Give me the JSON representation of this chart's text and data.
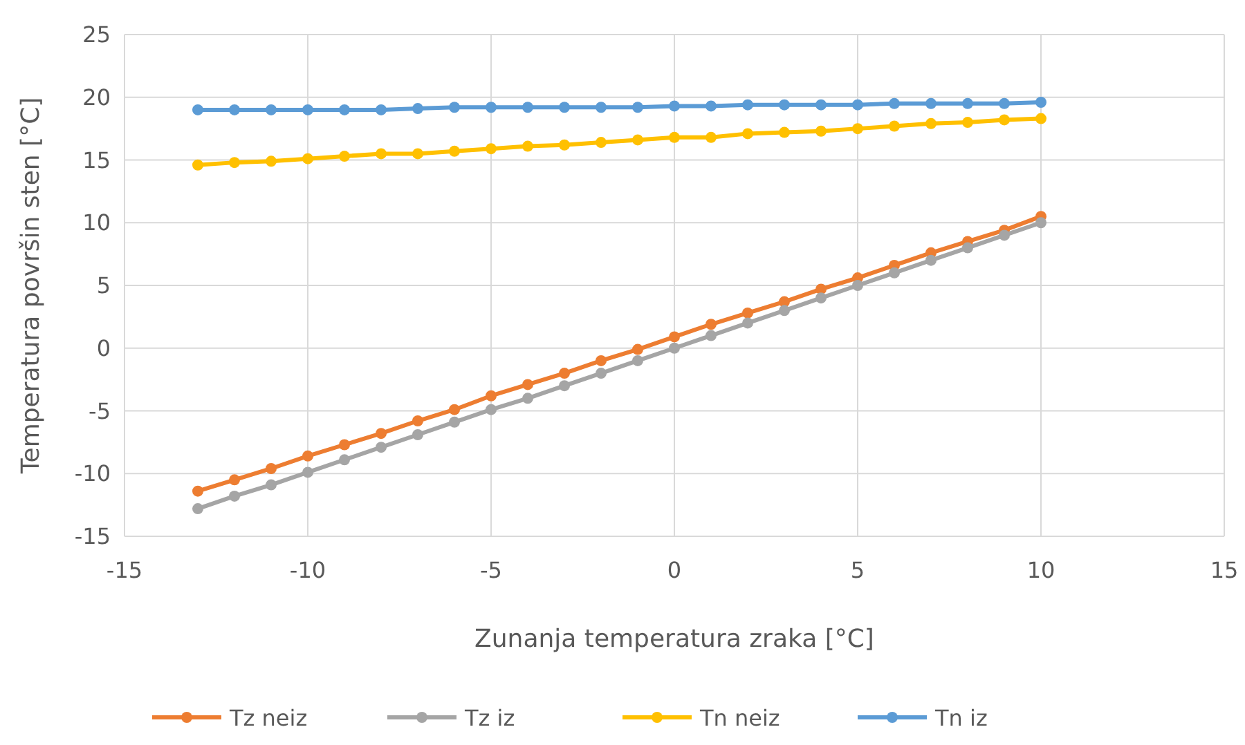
{
  "chart_data": {
    "type": "line",
    "xlabel": "Zunanja temperatura zraka [°C]",
    "ylabel": "Temperatura površin sten [°C]",
    "x": [
      -13,
      -12,
      -11,
      -10,
      -9,
      -8,
      -7,
      -6,
      -5,
      -4,
      -3,
      -2,
      -1,
      0,
      1,
      2,
      3,
      4,
      5,
      6,
      7,
      8,
      9,
      10
    ],
    "series": [
      {
        "name": "Tz neiz",
        "color": "#ed7d31",
        "values": [
          -11.4,
          -10.5,
          -9.6,
          -8.6,
          -7.7,
          -6.8,
          -5.8,
          -4.9,
          -3.8,
          -2.9,
          -2.0,
          -1.0,
          -0.1,
          0.9,
          1.9,
          2.8,
          3.7,
          4.7,
          5.6,
          6.6,
          7.6,
          8.5,
          9.4,
          10.5
        ]
      },
      {
        "name": "Tz iz",
        "color": "#a5a5a5",
        "values": [
          -12.8,
          -11.8,
          -10.9,
          -9.9,
          -8.9,
          -7.9,
          -6.9,
          -5.9,
          -4.9,
          -4.0,
          -3.0,
          -2.0,
          -1.0,
          0,
          1.0,
          2.0,
          3.0,
          4.0,
          5.0,
          6.0,
          7.0,
          8.0,
          9.0,
          10.0
        ]
      },
      {
        "name": "Tn neiz",
        "color": "#ffc000",
        "values": [
          14.6,
          14.8,
          14.9,
          15.1,
          15.3,
          15.5,
          15.5,
          15.7,
          15.9,
          16.1,
          16.2,
          16.4,
          16.6,
          16.8,
          16.8,
          17.1,
          17.2,
          17.3,
          17.5,
          17.7,
          17.9,
          18.0,
          18.2,
          18.3
        ]
      },
      {
        "name": "Tn iz",
        "color": "#5b9bd5",
        "values": [
          19.0,
          19.0,
          19.0,
          19.0,
          19.0,
          19.0,
          19.1,
          19.2,
          19.2,
          19.2,
          19.2,
          19.2,
          19.2,
          19.3,
          19.3,
          19.4,
          19.4,
          19.4,
          19.4,
          19.5,
          19.5,
          19.5,
          19.5,
          19.6
        ]
      }
    ],
    "xlim": [
      -15,
      15
    ],
    "xticks": [
      -15,
      -10,
      -5,
      0,
      5,
      10,
      15
    ],
    "ylim": [
      -15,
      25
    ],
    "yticks": [
      -15,
      -10,
      -5,
      0,
      5,
      10,
      15,
      20,
      25
    ],
    "grid": true,
    "legend": "bottom",
    "marker": "circle",
    "line_style": "solid"
  }
}
